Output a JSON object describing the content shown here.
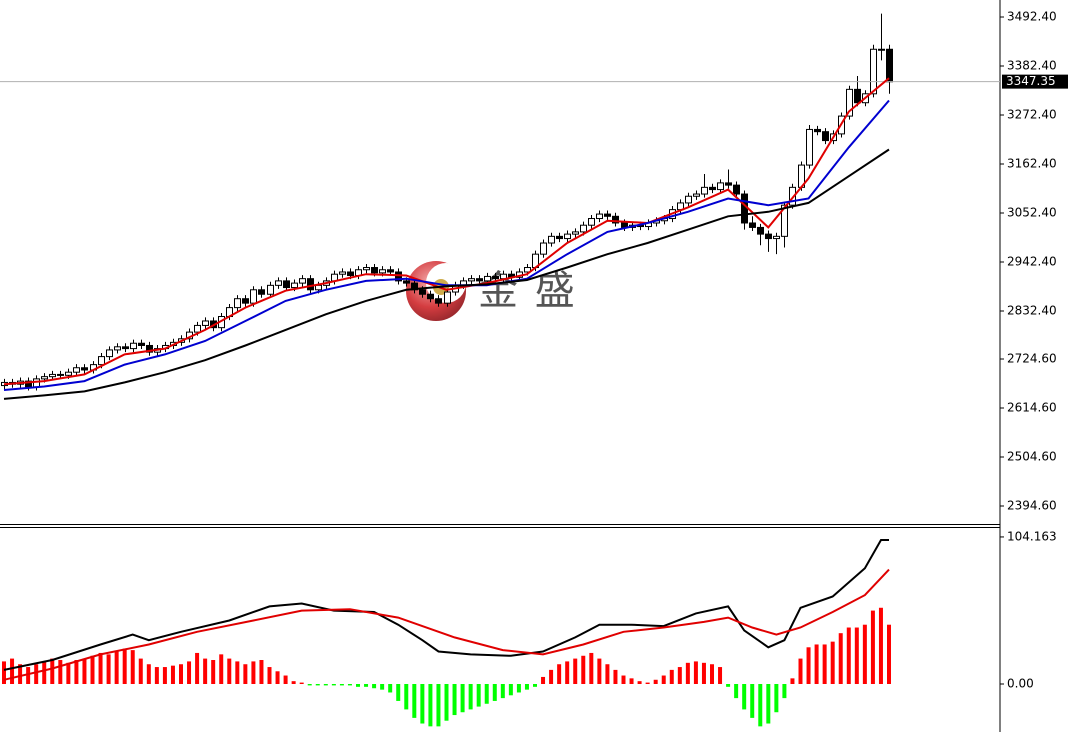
{
  "chart_data": [
    {
      "type": "candlestick",
      "candles": [
        [
          2665,
          2680,
          2657,
          2672
        ],
        [
          2672,
          2680,
          2660,
          2668
        ],
        [
          2668,
          2683,
          2660,
          2675
        ],
        [
          2675,
          2683,
          2654,
          2662
        ],
        [
          2662,
          2688,
          2654,
          2680
        ],
        [
          2680,
          2693,
          2672,
          2685
        ],
        [
          2685,
          2698,
          2677,
          2690
        ],
        [
          2690,
          2698,
          2680,
          2688
        ],
        [
          2688,
          2703,
          2680,
          2695
        ],
        [
          2695,
          2713,
          2687,
          2705
        ],
        [
          2705,
          2713,
          2692,
          2700
        ],
        [
          2700,
          2720,
          2692,
          2712
        ],
        [
          2712,
          2738,
          2704,
          2730
        ],
        [
          2730,
          2753,
          2722,
          2745
        ],
        [
          2745,
          2760,
          2737,
          2752
        ],
        [
          2752,
          2760,
          2740,
          2748
        ],
        [
          2748,
          2768,
          2740,
          2760
        ],
        [
          2760,
          2768,
          2747,
          2755
        ],
        [
          2755,
          2763,
          2732,
          2740
        ],
        [
          2740,
          2756,
          2732,
          2748
        ],
        [
          2748,
          2763,
          2740,
          2755
        ],
        [
          2755,
          2770,
          2747,
          2762
        ],
        [
          2762,
          2778,
          2754,
          2770
        ],
        [
          2770,
          2793,
          2762,
          2785
        ],
        [
          2785,
          2808,
          2777,
          2800
        ],
        [
          2800,
          2818,
          2792,
          2810
        ],
        [
          2810,
          2818,
          2787,
          2795
        ],
        [
          2795,
          2828,
          2787,
          2820
        ],
        [
          2820,
          2848,
          2812,
          2840
        ],
        [
          2840,
          2868,
          2832,
          2860
        ],
        [
          2860,
          2868,
          2842,
          2850
        ],
        [
          2850,
          2888,
          2842,
          2880
        ],
        [
          2880,
          2888,
          2862,
          2870
        ],
        [
          2870,
          2898,
          2862,
          2890
        ],
        [
          2890,
          2908,
          2882,
          2900
        ],
        [
          2900,
          2908,
          2877,
          2885
        ],
        [
          2885,
          2903,
          2877,
          2895
        ],
        [
          2895,
          2913,
          2887,
          2905
        ],
        [
          2905,
          2913,
          2872,
          2880
        ],
        [
          2880,
          2898,
          2872,
          2890
        ],
        [
          2890,
          2908,
          2882,
          2900
        ],
        [
          2900,
          2923,
          2892,
          2915
        ],
        [
          2915,
          2928,
          2907,
          2920
        ],
        [
          2920,
          2928,
          2904,
          2912
        ],
        [
          2912,
          2933,
          2904,
          2925
        ],
        [
          2925,
          2938,
          2917,
          2930
        ],
        [
          2930,
          2938,
          2910,
          2918
        ],
        [
          2918,
          2933,
          2910,
          2925
        ],
        [
          2925,
          2933,
          2912,
          2920
        ],
        [
          2920,
          2928,
          2892,
          2900
        ],
        [
          2900,
          2908,
          2887,
          2895
        ],
        [
          2895,
          2903,
          2872,
          2880
        ],
        [
          2880,
          2888,
          2862,
          2870
        ],
        [
          2870,
          2878,
          2852,
          2860
        ],
        [
          2860,
          2868,
          2842,
          2850
        ],
        [
          2850,
          2883,
          2842,
          2875
        ],
        [
          2875,
          2898,
          2867,
          2890
        ],
        [
          2890,
          2908,
          2882,
          2900
        ],
        [
          2900,
          2913,
          2892,
          2905
        ],
        [
          2905,
          2913,
          2892,
          2900
        ],
        [
          2900,
          2918,
          2892,
          2910
        ],
        [
          2910,
          2918,
          2897,
          2905
        ],
        [
          2905,
          2923,
          2897,
          2915
        ],
        [
          2915,
          2923,
          2900,
          2908
        ],
        [
          2908,
          2928,
          2900,
          2920
        ],
        [
          2920,
          2938,
          2912,
          2930
        ],
        [
          2930,
          2968,
          2922,
          2960
        ],
        [
          2960,
          2993,
          2952,
          2985
        ],
        [
          2985,
          3008,
          2977,
          3000
        ],
        [
          3000,
          3008,
          2987,
          2995
        ],
        [
          2995,
          3013,
          2987,
          3005
        ],
        [
          3005,
          3018,
          2997,
          3010
        ],
        [
          3010,
          3033,
          3002,
          3025
        ],
        [
          3025,
          3048,
          3017,
          3040
        ],
        [
          3040,
          3058,
          3032,
          3050
        ],
        [
          3050,
          3058,
          3037,
          3045
        ],
        [
          3045,
          3053,
          3022,
          3030
        ],
        [
          3030,
          3038,
          3012,
          3020
        ],
        [
          3020,
          3033,
          3012,
          3025
        ],
        [
          3025,
          3033,
          3014,
          3022
        ],
        [
          3022,
          3038,
          3014,
          3030
        ],
        [
          3030,
          3043,
          3022,
          3035
        ],
        [
          3035,
          3048,
          3027,
          3040
        ],
        [
          3040,
          3068,
          3032,
          3060
        ],
        [
          3060,
          3083,
          3052,
          3075
        ],
        [
          3075,
          3098,
          3067,
          3090
        ],
        [
          3090,
          3103,
          3082,
          3095
        ],
        [
          3095,
          3140,
          3087,
          3110
        ],
        [
          3110,
          3118,
          3097,
          3105
        ],
        [
          3105,
          3128,
          3097,
          3120
        ],
        [
          3120,
          3150,
          3107,
          3115
        ],
        [
          3115,
          3123,
          3087,
          3095
        ],
        [
          3095,
          3103,
          3015,
          3030
        ],
        [
          3030,
          3045,
          3012,
          3020
        ],
        [
          3020,
          3028,
          2980,
          3005
        ],
        [
          3005,
          3013,
          2965,
          2995
        ],
        [
          2995,
          3008,
          2960,
          3000
        ],
        [
          3000,
          3078,
          2975,
          3070
        ],
        [
          3070,
          3118,
          3062,
          3110
        ],
        [
          3110,
          3168,
          3102,
          3160
        ],
        [
          3160,
          3250,
          3152,
          3240
        ],
        [
          3240,
          3248,
          3227,
          3235
        ],
        [
          3235,
          3243,
          3207,
          3215
        ],
        [
          3215,
          3238,
          3207,
          3230
        ],
        [
          3230,
          3278,
          3222,
          3270
        ],
        [
          3270,
          3338,
          3262,
          3330
        ],
        [
          3330,
          3360,
          3292,
          3300
        ],
        [
          3300,
          3328,
          3292,
          3320
        ],
        [
          3320,
          3430,
          3312,
          3420
        ],
        [
          3420,
          3500,
          3395,
          3420
        ],
        [
          3420,
          3430,
          3320,
          3347
        ]
      ],
      "up_color": "#ffffff",
      "down_color": "#000000",
      "lines": [
        {
          "color": "#e00000",
          "x": [
            0,
            5,
            10,
            15,
            20,
            25,
            30,
            35,
            40,
            45,
            50,
            55,
            60,
            65,
            70,
            75,
            80,
            85,
            90,
            95,
            100,
            105,
            110
          ],
          "values": [
            2668,
            2675,
            2690,
            2735,
            2748,
            2790,
            2840,
            2878,
            2895,
            2915,
            2912,
            2880,
            2895,
            2915,
            2985,
            3035,
            3030,
            3065,
            3105,
            3020,
            3130,
            3280,
            3355
          ]
        },
        {
          "color": "#0000d0",
          "x": [
            0,
            5,
            10,
            15,
            20,
            25,
            30,
            35,
            40,
            45,
            50,
            55,
            60,
            65,
            70,
            75,
            80,
            85,
            90,
            95,
            100,
            105,
            110
          ],
          "values": [
            2655,
            2663,
            2675,
            2712,
            2735,
            2765,
            2810,
            2855,
            2880,
            2900,
            2905,
            2890,
            2890,
            2905,
            2960,
            3010,
            3030,
            3055,
            3085,
            3070,
            3085,
            3200,
            3305
          ]
        },
        {
          "color": "#000000",
          "x": [
            0,
            5,
            10,
            15,
            20,
            25,
            30,
            35,
            40,
            45,
            50,
            55,
            60,
            65,
            70,
            75,
            80,
            85,
            90,
            95,
            100,
            105,
            110
          ],
          "values": [
            2635,
            2643,
            2652,
            2672,
            2695,
            2722,
            2755,
            2790,
            2825,
            2855,
            2880,
            2888,
            2892,
            2902,
            2930,
            2960,
            2985,
            3015,
            3045,
            3055,
            3075,
            3135,
            3195
          ]
        }
      ],
      "ylim": [
        2354.2,
        3530.6
      ],
      "yticks": [
        {
          "value": 3492.4,
          "label": "3492.40"
        },
        {
          "value": 3382.4,
          "label": "3382.40"
        },
        {
          "value": 3272.4,
          "label": "3272.40"
        },
        {
          "value": 3162.4,
          "label": "3162.40"
        },
        {
          "value": 3052.4,
          "label": "3052.40"
        },
        {
          "value": 2942.4,
          "label": "2942.40"
        },
        {
          "value": 2832.4,
          "label": "2832.40"
        },
        {
          "value": 2724.6,
          "label": "2724.60"
        },
        {
          "value": 2614.6,
          "label": "2614.60"
        },
        {
          "value": 2504.6,
          "label": "2504.60"
        },
        {
          "value": 2394.6,
          "label": "2394.60"
        }
      ],
      "current_price": 3347.35,
      "watermark": "金 盛"
    },
    {
      "type": "macd",
      "histogram": [
        16,
        18,
        14,
        12,
        14,
        16,
        18,
        17,
        15,
        17,
        18,
        20,
        22,
        21,
        23,
        25,
        24,
        18,
        14,
        12,
        12,
        13,
        14,
        16,
        22,
        18,
        17,
        21,
        18,
        16,
        14,
        16,
        17,
        12,
        9,
        6,
        2,
        1,
        -1,
        -1,
        -1,
        -1,
        -1,
        -1,
        -2,
        -2,
        -3,
        -4,
        -6,
        -12,
        -18,
        -24,
        -28,
        -30,
        -30,
        -26,
        -22,
        -20,
        -18,
        -16,
        -14,
        -12,
        -10,
        -8,
        -6,
        -4,
        -2,
        5,
        10,
        14,
        16,
        18,
        20,
        22,
        18,
        14,
        10,
        6,
        4,
        2,
        1,
        3,
        6,
        10,
        12,
        15,
        16,
        15,
        14,
        12,
        -2,
        -10,
        -18,
        -24,
        -30,
        -28,
        -20,
        -10,
        4,
        18,
        26,
        28,
        28,
        30,
        36,
        40,
        40,
        42,
        52,
        54,
        42
      ],
      "up_color": "#ff0000",
      "down_color": "#00ff00",
      "lines": [
        {
          "color": "#000000",
          "x": [
            0,
            6,
            12,
            16,
            18,
            22,
            28,
            33,
            37,
            41,
            46,
            49,
            52,
            54,
            58,
            63,
            67,
            71,
            74,
            78,
            82,
            86,
            90,
            92,
            95,
            97,
            99,
            103,
            107,
            109,
            110
          ],
          "values": [
            10,
            17,
            28,
            35,
            31,
            37,
            45,
            55,
            57,
            52,
            51,
            42,
            31,
            23,
            21,
            20,
            23,
            33,
            42,
            42,
            41,
            50,
            55,
            38,
            26,
            31,
            54,
            62,
            82,
            102,
            102
          ]
        },
        {
          "color": "#e00000",
          "x": [
            0,
            6,
            12,
            18,
            24,
            31,
            37,
            43,
            49,
            56,
            62,
            67,
            72,
            77,
            82,
            87,
            90,
            93,
            96,
            99,
            103,
            107,
            110
          ],
          "values": [
            3,
            11,
            21,
            28,
            37,
            45,
            52,
            53,
            47,
            33,
            24,
            21,
            28,
            37,
            40,
            44,
            47,
            40,
            35,
            40,
            51,
            63,
            81
          ]
        }
      ],
      "ylim": [
        -34,
        110.5
      ],
      "yticks": [
        104.163,
        {
          "value": 0,
          "label": "0.00"
        }
      ]
    }
  ]
}
